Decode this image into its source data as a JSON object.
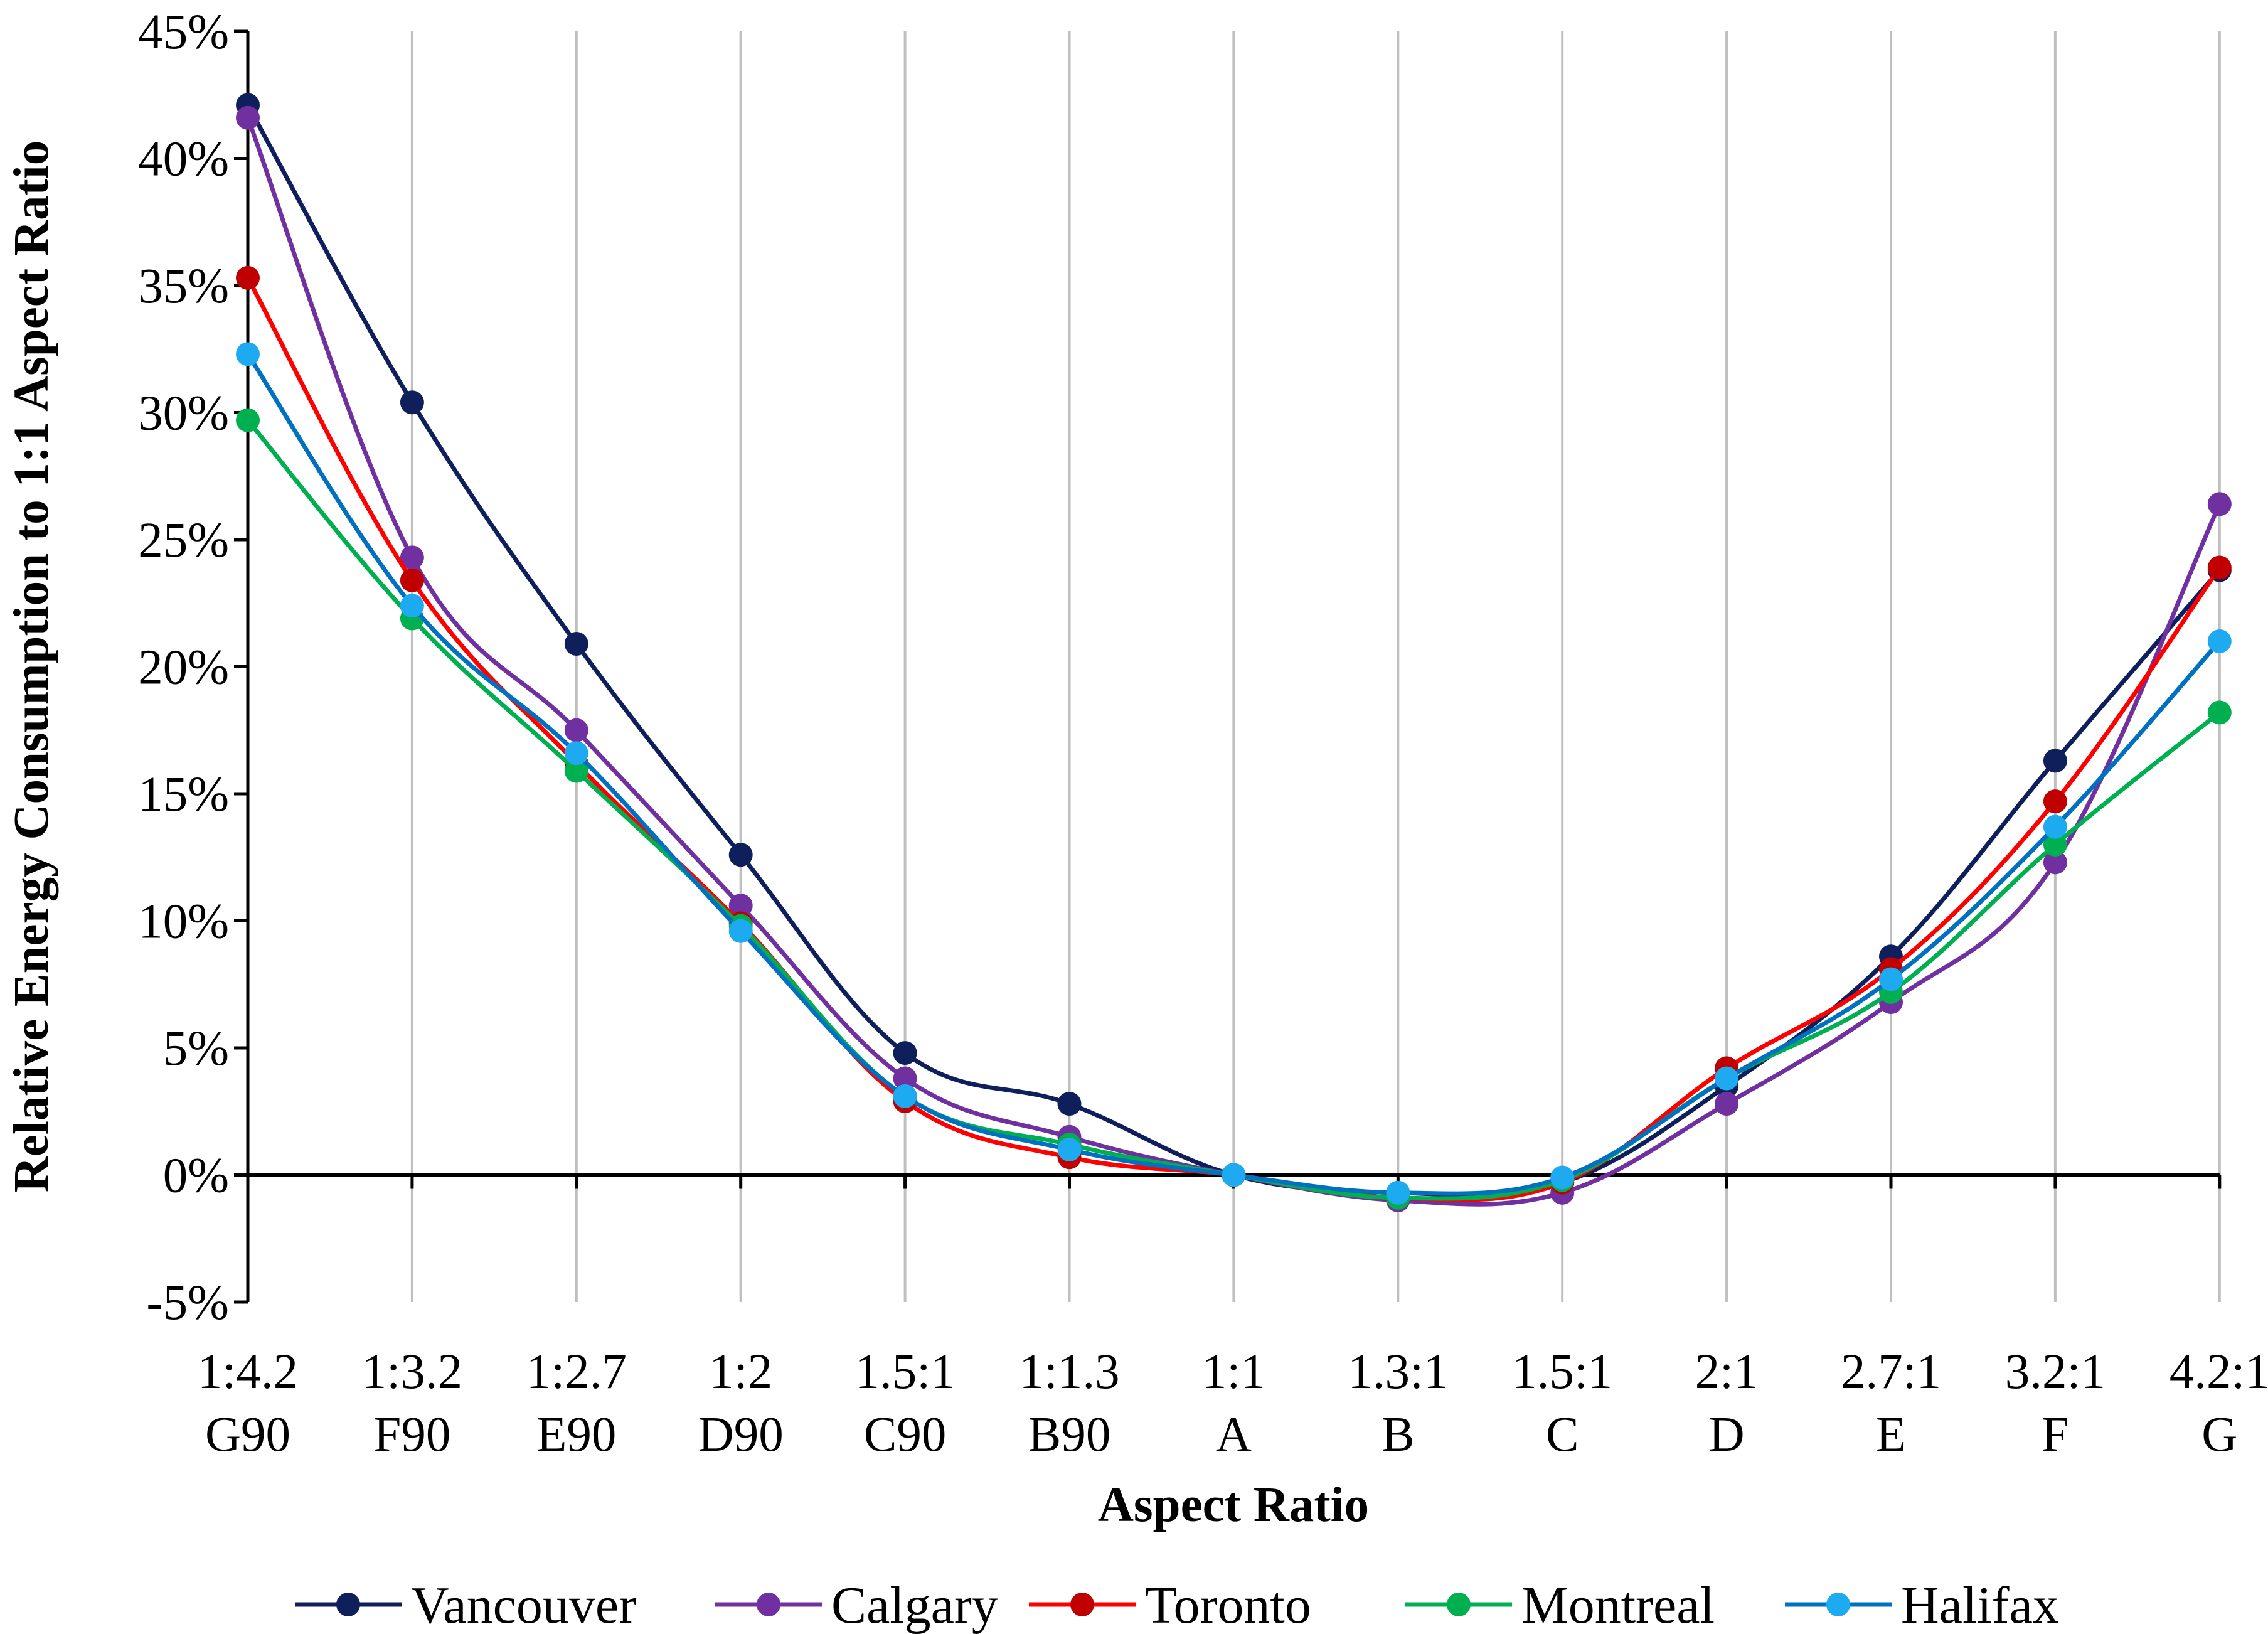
{
  "chart_data": {
    "type": "line",
    "title": "",
    "xlabel": "Aspect Ratio",
    "ylabel": "Relative Energy Consumption to 1:1 Aspect Ratio",
    "ylim": [
      -5,
      45
    ],
    "ytick_step": 5,
    "ytick_labels": [
      "-5%",
      "0%",
      "5%",
      "10%",
      "15%",
      "20%",
      "25%",
      "30%",
      "35%",
      "40%",
      "45%"
    ],
    "grid": "vertical",
    "legend_position": "bottom",
    "categories": [
      {
        "ratio": "1:4.2",
        "code": "G90"
      },
      {
        "ratio": "1:3.2",
        "code": "F90"
      },
      {
        "ratio": "1:2.7",
        "code": "E90"
      },
      {
        "ratio": "1:2",
        "code": "D90"
      },
      {
        "ratio": "1.5:1",
        "code": "C90"
      },
      {
        "ratio": "1:1.3",
        "code": "B90"
      },
      {
        "ratio": "1:1",
        "code": "A"
      },
      {
        "ratio": "1.3:1",
        "code": "B"
      },
      {
        "ratio": "1.5:1",
        "code": "C"
      },
      {
        "ratio": "2:1",
        "code": "D"
      },
      {
        "ratio": "2.7:1",
        "code": "E"
      },
      {
        "ratio": "3.2:1",
        "code": "F"
      },
      {
        "ratio": "4.2:1",
        "code": "G"
      }
    ],
    "series": [
      {
        "name": "Vancouver",
        "line_color": "#0e1f5b",
        "marker_color": "#0e1f5b",
        "values": [
          42.1,
          30.4,
          20.9,
          12.6,
          4.8,
          2.8,
          0.0,
          -0.7,
          -0.3,
          3.5,
          8.6,
          16.3,
          23.8
        ]
      },
      {
        "name": "Calgary",
        "line_color": "#7030a0",
        "marker_color": "#7030a0",
        "values": [
          41.6,
          24.3,
          17.5,
          10.6,
          3.8,
          1.5,
          0.0,
          -1.0,
          -0.7,
          2.8,
          6.8,
          12.3,
          26.4
        ]
      },
      {
        "name": "Toronto",
        "line_color": "#ff0000",
        "marker_color": "#c00000",
        "values": [
          35.3,
          23.4,
          16.2,
          9.9,
          2.9,
          0.7,
          0.0,
          -0.9,
          -0.3,
          4.2,
          8.1,
          14.7,
          23.9
        ]
      },
      {
        "name": "Montreal",
        "line_color": "#00b050",
        "marker_color": "#00b050",
        "values": [
          29.7,
          21.9,
          15.9,
          9.8,
          3.1,
          1.2,
          0.0,
          -0.9,
          -0.2,
          3.8,
          7.2,
          13.0,
          18.2
        ]
      },
      {
        "name": "Halifax",
        "line_color": "#0070c0",
        "marker_color": "#1eaaf1",
        "values": [
          32.3,
          22.4,
          16.6,
          9.6,
          3.1,
          1.0,
          0.0,
          -0.7,
          -0.1,
          3.8,
          7.7,
          13.7,
          21.0
        ]
      }
    ]
  }
}
